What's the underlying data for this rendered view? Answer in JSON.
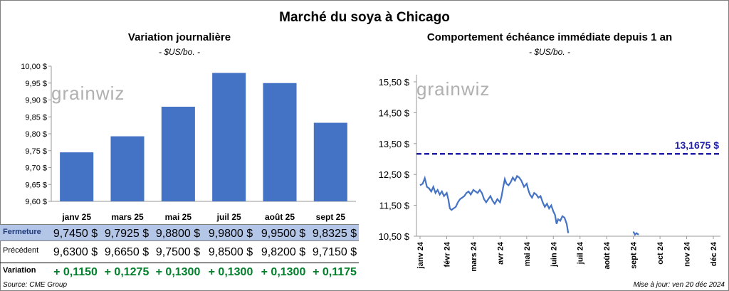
{
  "title": "Marché du soya à Chicago",
  "left": {
    "subtitle": "Variation journalière",
    "unit": "- $US/bo. -",
    "watermark": "grainwiz"
  },
  "right": {
    "subtitle": "Comportement échéance immédiate depuis 1 an",
    "unit": "- $US/bo. -",
    "watermark": "grainwiz",
    "reference_label": "13,1675 $"
  },
  "table": {
    "rows": [
      {
        "label": "Fermeture",
        "values": [
          "9,7450 $",
          "9,7925 $",
          "9,8800 $",
          "9,9800 $",
          "9,9500 $",
          "9,8325 $"
        ]
      },
      {
        "label": "Précédent",
        "values": [
          "9,6300 $",
          "9,6650 $",
          "9,7500 $",
          "9,8500 $",
          "9,8200 $",
          "9,7150 $"
        ]
      },
      {
        "label": "Variation",
        "values": [
          "+ 0,1150",
          "+ 0,1275",
          "+ 0,1300",
          "+ 0,1300",
          "+ 0,1300",
          "+ 0,1175"
        ]
      }
    ]
  },
  "footer": {
    "source": "Source: CME Group",
    "updated": "Mise à jour: ven 20 déc 2024"
  },
  "colors": {
    "bar": "#4472c4",
    "line": "#4472c4",
    "reference": "#1f1fa8",
    "positive": "#00802b",
    "highlight_row": "#b4c6e7"
  },
  "chart_data": [
    {
      "type": "bar",
      "categories": [
        "janv 25",
        "mars 25",
        "mai 25",
        "juil 25",
        "août 25",
        "sept 25"
      ],
      "values": [
        9.745,
        9.7925,
        9.88,
        9.98,
        9.95,
        9.8325
      ],
      "ylim": [
        9.6,
        10.0
      ],
      "yticks": [
        9.6,
        9.65,
        9.7,
        9.75,
        9.8,
        9.85,
        9.9,
        9.95,
        10.0
      ],
      "ytick_labels": [
        "9,60 $",
        "9,65 $",
        "9,70 $",
        "9,75 $",
        "9,80 $",
        "9,85 $",
        "9,90 $",
        "9,95 $",
        "10,00 $"
      ],
      "grid": false
    },
    {
      "type": "line",
      "xlabels": [
        "janv 24",
        "févr 24",
        "mars 24",
        "avr 24",
        "mai 24",
        "juin 24",
        "juil 24",
        "août 24",
        "sept 24",
        "oct 24",
        "nov 24",
        "déc 24"
      ],
      "ylim": [
        10.5,
        15.5
      ],
      "yticks": [
        10.5,
        11.5,
        12.5,
        13.5,
        14.5,
        15.5
      ],
      "ytick_labels": [
        "10,50 $",
        "11,50 $",
        "12,50 $",
        "13,50 $",
        "14,50 $",
        "15,50 $"
      ],
      "reference": 13.1675,
      "series": [
        {
          "values": [
            [
              0.0,
              12.15
            ],
            [
              0.1,
              12.2
            ],
            [
              0.18,
              12.38
            ],
            [
              0.26,
              12.1
            ],
            [
              0.34,
              12.05
            ],
            [
              0.42,
              11.95
            ],
            [
              0.5,
              12.1
            ],
            [
              0.58,
              11.9
            ],
            [
              0.66,
              12.0
            ],
            [
              0.74,
              11.85
            ],
            [
              0.82,
              11.95
            ],
            [
              0.9,
              11.8
            ],
            [
              1.0,
              11.9
            ],
            [
              1.06,
              11.7
            ],
            [
              1.12,
              11.4
            ],
            [
              1.18,
              11.35
            ],
            [
              1.26,
              11.4
            ],
            [
              1.34,
              11.45
            ],
            [
              1.42,
              11.6
            ],
            [
              1.5,
              11.7
            ],
            [
              1.58,
              11.75
            ],
            [
              1.66,
              11.8
            ],
            [
              1.74,
              11.9
            ],
            [
              1.82,
              11.95
            ],
            [
              1.9,
              11.85
            ],
            [
              2.0,
              12.0
            ],
            [
              2.08,
              11.95
            ],
            [
              2.16,
              11.9
            ],
            [
              2.24,
              12.0
            ],
            [
              2.32,
              11.9
            ],
            [
              2.4,
              11.7
            ],
            [
              2.48,
              11.6
            ],
            [
              2.56,
              11.7
            ],
            [
              2.64,
              11.8
            ],
            [
              2.72,
              11.65
            ],
            [
              2.8,
              11.55
            ],
            [
              2.9,
              11.7
            ],
            [
              3.0,
              11.6
            ],
            [
              3.06,
              11.8
            ],
            [
              3.12,
              12.1
            ],
            [
              3.18,
              12.35
            ],
            [
              3.24,
              12.2
            ],
            [
              3.32,
              12.15
            ],
            [
              3.4,
              12.25
            ],
            [
              3.48,
              12.4
            ],
            [
              3.56,
              12.3
            ],
            [
              3.64,
              12.45
            ],
            [
              3.72,
              12.4
            ],
            [
              3.8,
              12.3
            ],
            [
              3.9,
              12.1
            ],
            [
              4.0,
              12.2
            ],
            [
              4.06,
              12.0
            ],
            [
              4.12,
              11.85
            ],
            [
              4.2,
              11.75
            ],
            [
              4.28,
              11.9
            ],
            [
              4.36,
              11.85
            ],
            [
              4.44,
              11.75
            ],
            [
              4.52,
              11.8
            ],
            [
              4.6,
              11.6
            ],
            [
              4.68,
              11.45
            ],
            [
              4.76,
              11.55
            ],
            [
              4.84,
              11.4
            ],
            [
              4.92,
              11.5
            ],
            [
              5.0,
              11.3
            ],
            [
              5.06,
              11.2
            ],
            [
              5.12,
              10.9
            ],
            [
              5.18,
              11.05
            ],
            [
              5.26,
              11.0
            ],
            [
              5.34,
              11.15
            ],
            [
              5.42,
              11.1
            ],
            [
              5.5,
              10.9
            ],
            [
              5.56,
              10.6
            ]
          ]
        },
        {
          "values": [
            [
              8.0,
              10.65
            ],
            [
              8.06,
              10.55
            ],
            [
              8.12,
              10.6
            ],
            [
              8.2,
              10.55
            ]
          ]
        }
      ]
    }
  ]
}
